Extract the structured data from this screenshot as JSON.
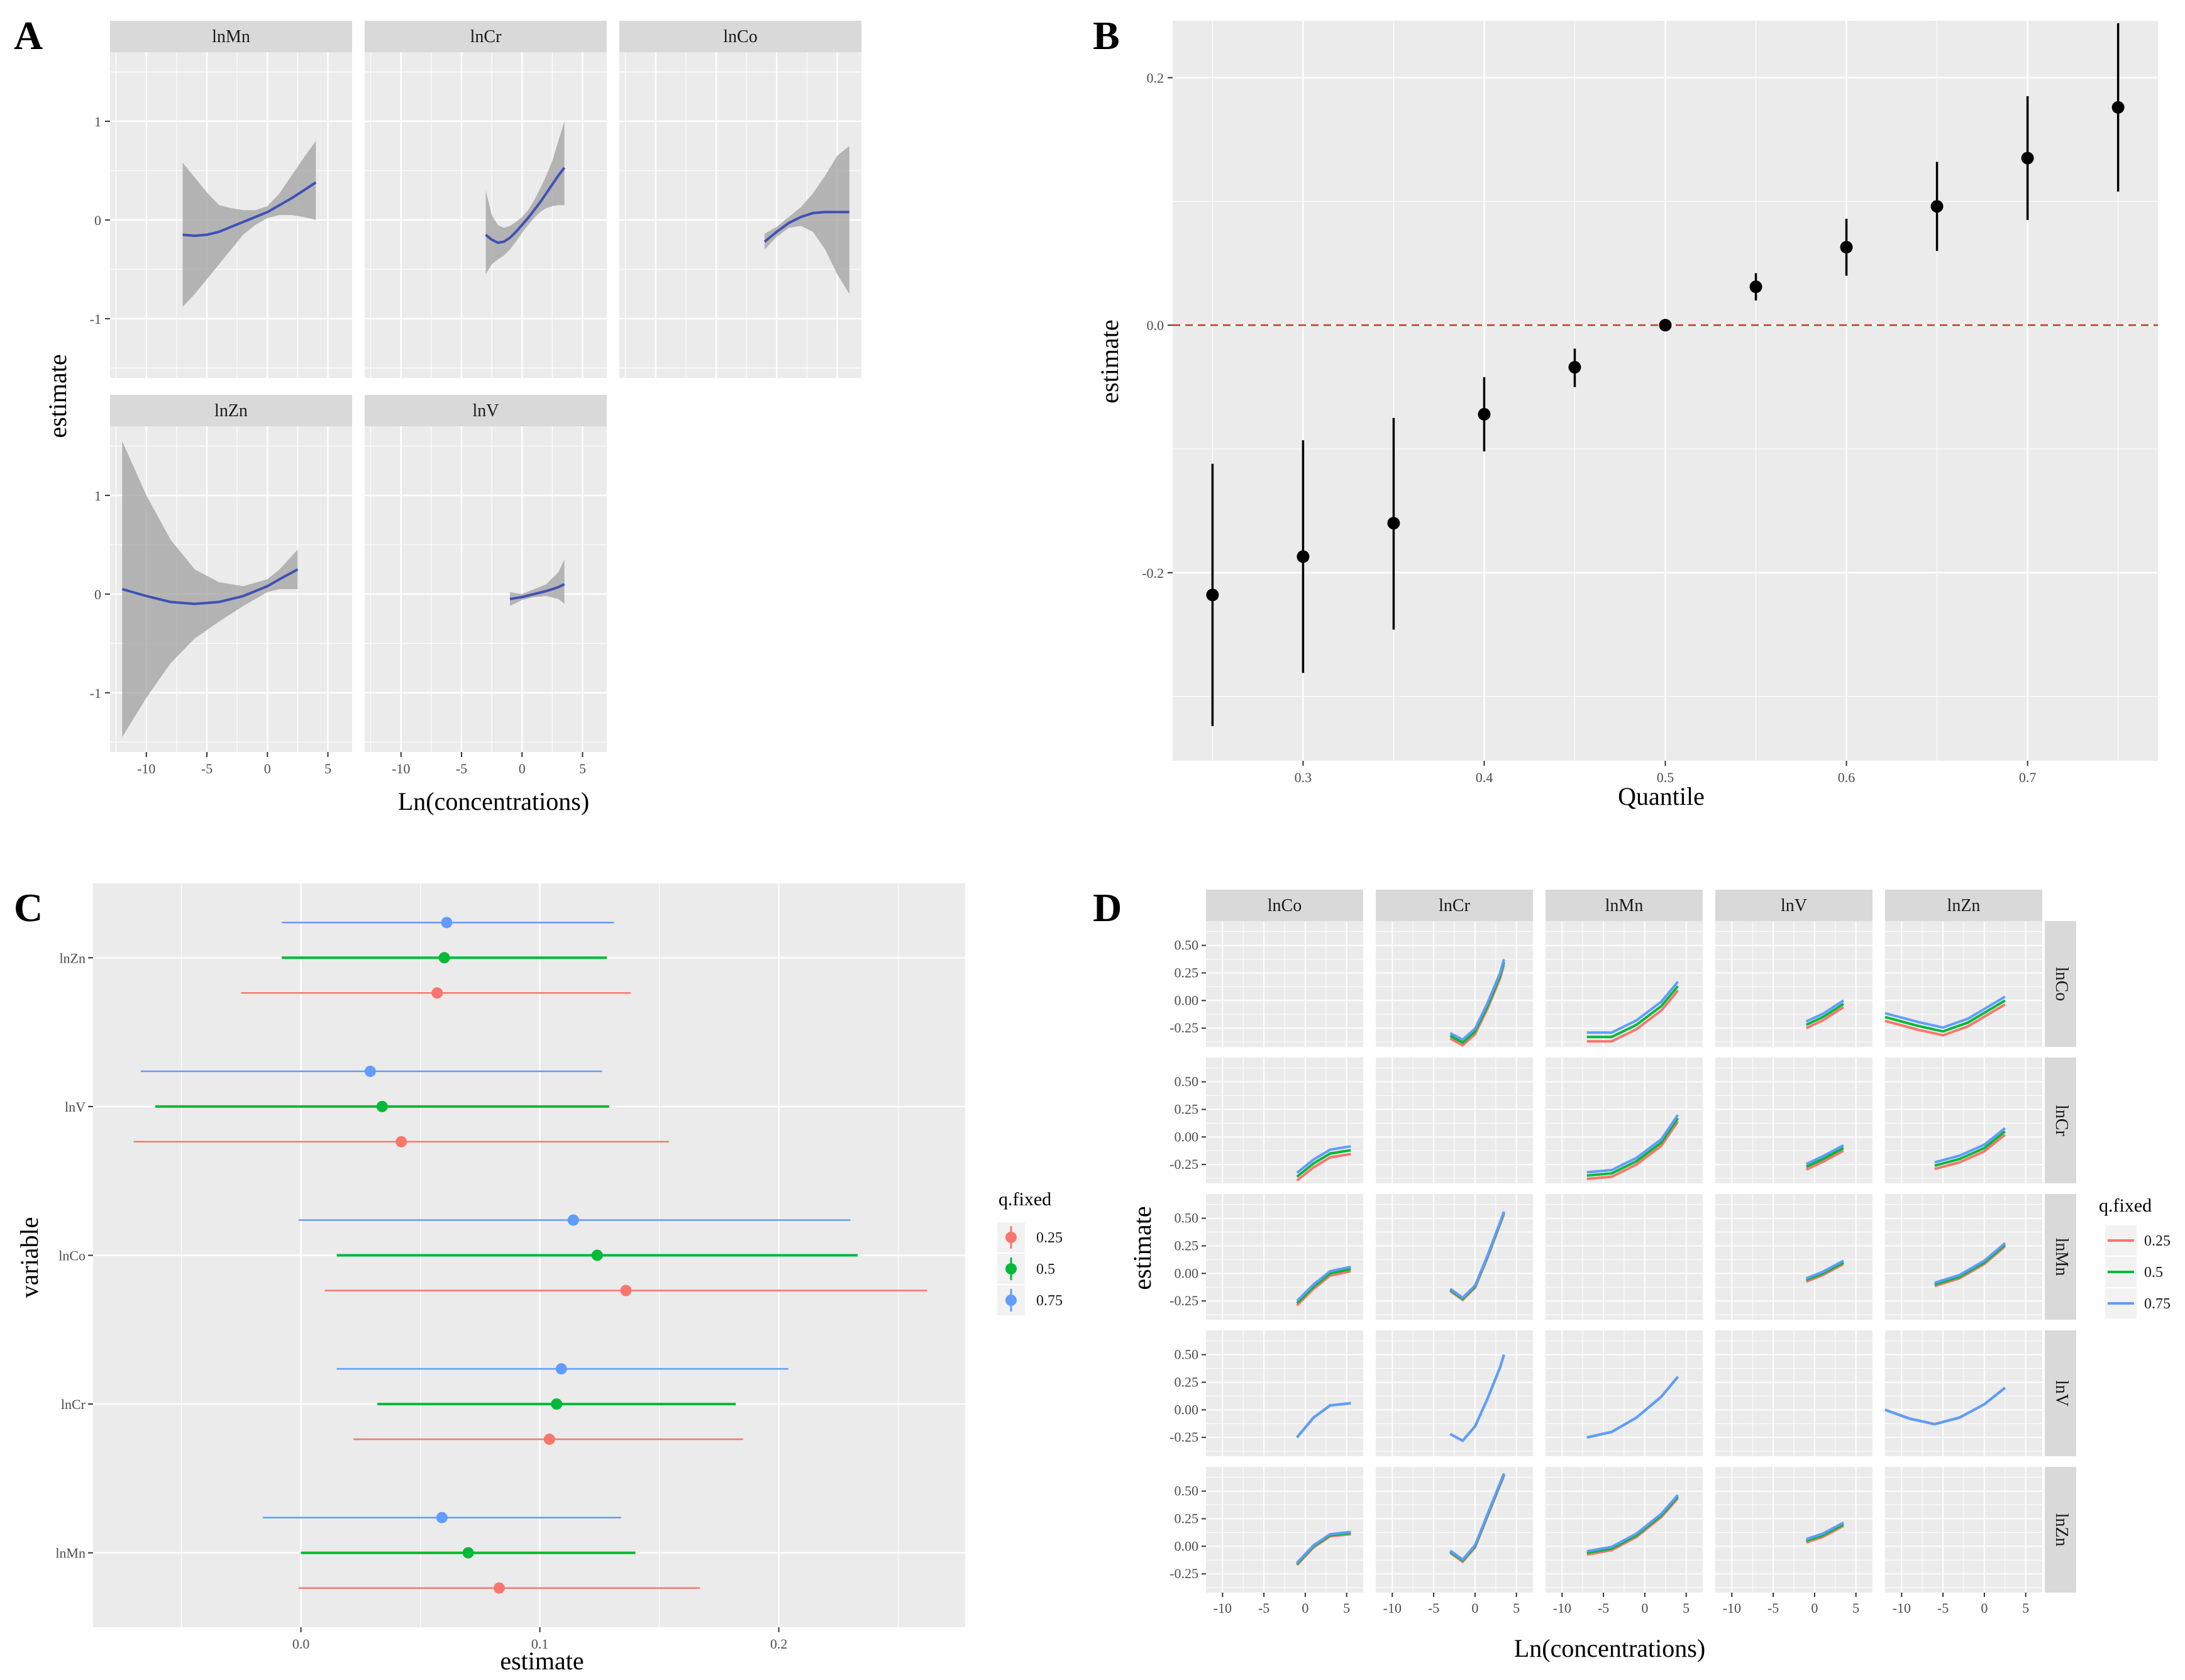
{
  "panel_labels": [
    "A",
    "B",
    "C",
    "D"
  ],
  "chart_data": [
    {
      "panel": "A",
      "type": "line",
      "description_type": "faceted exposure-response curves with confidence ribbons",
      "facets": [
        {
          "label": "lnMn",
          "x": [
            -7,
            -6,
            -5,
            -4,
            -3,
            -2,
            -1,
            0,
            1,
            2,
            3,
            4
          ],
          "y": [
            -0.15,
            -0.16,
            -0.15,
            -0.12,
            -0.07,
            -0.02,
            0.03,
            0.08,
            0.15,
            0.22,
            0.3,
            0.38
          ],
          "lower": [
            -0.88,
            -0.75,
            -0.6,
            -0.45,
            -0.3,
            -0.15,
            -0.05,
            0.02,
            0.05,
            0.05,
            0.03,
            0.0
          ],
          "upper": [
            0.58,
            0.43,
            0.28,
            0.15,
            0.12,
            0.1,
            0.1,
            0.14,
            0.27,
            0.45,
            0.63,
            0.8
          ]
        },
        {
          "label": "lnCr",
          "x": [
            -3,
            -2.5,
            -2,
            -1.5,
            -1,
            -0.5,
            0,
            0.5,
            1,
            1.5,
            2,
            2.5,
            3,
            3.5
          ],
          "y": [
            -0.15,
            -0.2,
            -0.23,
            -0.22,
            -0.18,
            -0.12,
            -0.05,
            0.02,
            0.1,
            0.18,
            0.27,
            0.36,
            0.45,
            0.53
          ],
          "lower": [
            -0.55,
            -0.45,
            -0.4,
            -0.36,
            -0.3,
            -0.22,
            -0.13,
            -0.05,
            0.02,
            0.08,
            0.12,
            0.14,
            0.15,
            0.15
          ],
          "upper": [
            0.3,
            0.05,
            -0.05,
            -0.08,
            -0.06,
            -0.02,
            0.03,
            0.1,
            0.2,
            0.32,
            0.45,
            0.6,
            0.8,
            1.0
          ]
        },
        {
          "label": "lnCo",
          "x": [
            -1,
            0,
            1,
            2,
            3,
            4,
            5,
            6
          ],
          "y": [
            -0.22,
            -0.12,
            -0.03,
            0.03,
            0.07,
            0.08,
            0.08,
            0.08
          ],
          "lower": [
            -0.3,
            -0.17,
            -0.08,
            -0.06,
            -0.12,
            -0.3,
            -0.55,
            -0.75
          ],
          "upper": [
            -0.14,
            -0.07,
            0.03,
            0.13,
            0.27,
            0.45,
            0.65,
            0.75
          ]
        },
        {
          "label": "lnZn",
          "x": [
            -12,
            -10,
            -8,
            -6,
            -4,
            -2,
            0,
            1,
            2.5
          ],
          "y": [
            0.05,
            -0.02,
            -0.08,
            -0.1,
            -0.08,
            -0.02,
            0.08,
            0.15,
            0.25
          ],
          "lower": [
            -1.45,
            -1.05,
            -0.7,
            -0.45,
            -0.28,
            -0.12,
            0.02,
            0.05,
            0.05
          ],
          "upper": [
            1.55,
            1.0,
            0.55,
            0.25,
            0.12,
            0.08,
            0.15,
            0.25,
            0.45
          ]
        },
        {
          "label": "lnV",
          "x": [
            -1,
            0,
            1,
            2,
            3,
            3.5
          ],
          "y": [
            -0.05,
            -0.03,
            0.0,
            0.03,
            0.07,
            0.1
          ],
          "lower": [
            -0.12,
            -0.06,
            -0.03,
            -0.02,
            -0.05,
            -0.1
          ],
          "upper": [
            0.02,
            0.0,
            0.05,
            0.1,
            0.22,
            0.35
          ]
        }
      ],
      "xlabel": "Ln(concentrations)",
      "ylabel": "estimate",
      "xticks": [
        -10,
        -5,
        0,
        5
      ],
      "yticks": [
        -1,
        0,
        1
      ],
      "xlim": [
        -13,
        7
      ],
      "ylim": [
        -1.6,
        1.7
      ],
      "line_color": "#3F51B5",
      "ribbon_color": "#A0A0A0"
    },
    {
      "panel": "B",
      "type": "scatter",
      "description_type": "point estimates with error bars by quantile",
      "x": [
        0.25,
        0.3,
        0.35,
        0.4,
        0.45,
        0.5,
        0.55,
        0.6,
        0.65,
        0.7,
        0.75
      ],
      "y": [
        -0.218,
        -0.187,
        -0.16,
        -0.072,
        -0.034,
        0.0,
        0.031,
        0.063,
        0.096,
        0.135,
        0.176
      ],
      "lower": [
        -0.324,
        -0.281,
        -0.246,
        -0.102,
        -0.05,
        0.0,
        0.02,
        0.04,
        0.06,
        0.085,
        0.108
      ],
      "upper": [
        -0.112,
        -0.093,
        -0.075,
        -0.042,
        -0.019,
        0.0,
        0.042,
        0.086,
        0.132,
        0.185,
        0.244
      ],
      "xlabel": "Quantile",
      "ylabel": "estimate",
      "xticks": [
        0.3,
        0.4,
        0.5,
        0.6,
        0.7
      ],
      "xtick_labels": [
        "0.3",
        "0.4",
        "0.5",
        "0.6",
        "0.7"
      ],
      "yticks": [
        -0.2,
        0.0,
        0.2
      ],
      "ytick_labels": [
        "-0.2",
        "0.0",
        "0.2"
      ],
      "xlim": [
        0.228,
        0.772
      ],
      "ylim": [
        -0.352,
        0.246
      ],
      "reference_line": {
        "y": 0,
        "color": "#C0392B",
        "style": "dashed"
      }
    },
    {
      "panel": "C",
      "type": "scatter",
      "description_type": "dot-and-whisker estimates by variable and fixed quantile",
      "categories": [
        "lnZn",
        "lnV",
        "lnCo",
        "lnCr",
        "lnMn"
      ],
      "series": [
        {
          "name": "0.25",
          "color": "#F8766D",
          "values": [
            0.057,
            0.042,
            0.136,
            0.104,
            0.083
          ],
          "lower": [
            -0.025,
            -0.07,
            0.01,
            0.022,
            -0.001
          ],
          "upper": [
            0.138,
            0.154,
            0.262,
            0.185,
            0.167
          ]
        },
        {
          "name": "0.5",
          "color": "#00BA38",
          "values": [
            0.06,
            0.034,
            0.124,
            0.107,
            0.07
          ],
          "lower": [
            -0.008,
            -0.061,
            0.015,
            0.032,
            0.0
          ],
          "upper": [
            0.128,
            0.129,
            0.233,
            0.182,
            0.14
          ]
        },
        {
          "name": "0.75",
          "color": "#619CFF",
          "values": [
            0.061,
            0.029,
            0.114,
            0.109,
            0.059
          ],
          "lower": [
            -0.008,
            -0.067,
            -0.001,
            0.015,
            -0.016
          ],
          "upper": [
            0.131,
            0.126,
            0.23,
            0.204,
            0.134
          ]
        }
      ],
      "xlabel": "estimate",
      "ylabel": "variable",
      "xticks": [
        0.0,
        0.1,
        0.2
      ],
      "xtick_labels": [
        "0.0",
        "0.1",
        "0.2"
      ],
      "xlim": [
        -0.087,
        0.278
      ],
      "legend_title": "q.fixed",
      "legend_labels": [
        "0.25",
        "0.5",
        "0.75"
      ],
      "legend_position": "right"
    },
    {
      "panel": "D",
      "type": "line",
      "description_type": "bivariate interaction grid of exposure-response curves",
      "col_labels": [
        "lnCo",
        "lnCr",
        "lnMn",
        "lnV",
        "lnZn"
      ],
      "row_labels": [
        "lnCo",
        "lnCr",
        "lnMn",
        "lnV",
        "lnZn"
      ],
      "xlabel": "Ln(concentrations)",
      "ylabel": "estimate",
      "xticks": [
        -10,
        -5,
        0,
        5
      ],
      "xtick_labels": [
        "-10",
        "-5",
        "0",
        "5"
      ],
      "yticks": [
        0.5,
        0.25,
        0.0,
        -0.25
      ],
      "ytick_labels": [
        "0.50",
        "0.25",
        "0.00",
        "-0.25"
      ],
      "xlim": [
        -12,
        7
      ],
      "ylim": [
        -0.42,
        0.72
      ],
      "legend_title": "q.fixed",
      "legend_labels": [
        "0.25",
        "0.5",
        "0.75"
      ],
      "series_colors": [
        "#F8766D",
        "#00BA38",
        "#619CFF"
      ],
      "legend_position": "right",
      "cells": [
        {
          "row": 0,
          "col": 1,
          "x": [
            -3,
            -1.5,
            0,
            1.5,
            3,
            3.5
          ],
          "y": [
            -0.32,
            -0.38,
            -0.28,
            -0.05,
            0.22,
            0.35
          ],
          "shift": 0.05
        },
        {
          "row": 0,
          "col": 2,
          "x": [
            -7,
            -4,
            -1,
            2,
            4
          ],
          "y": [
            -0.33,
            -0.33,
            -0.22,
            -0.05,
            0.13
          ],
          "shift": 0.08
        },
        {
          "row": 0,
          "col": 3,
          "x": [
            -1,
            1,
            3.5
          ],
          "y": [
            -0.22,
            -0.15,
            -0.03
          ],
          "shift": 0.06
        },
        {
          "row": 0,
          "col": 4,
          "x": [
            -12,
            -8,
            -5,
            -2,
            2.5
          ],
          "y": [
            -0.15,
            -0.23,
            -0.28,
            -0.2,
            0.0
          ],
          "shift": 0.07
        },
        {
          "row": 1,
          "col": 0,
          "x": [
            -1,
            1,
            3,
            5.5
          ],
          "y": [
            -0.36,
            -0.24,
            -0.15,
            -0.12
          ],
          "shift": 0.07
        },
        {
          "row": 1,
          "col": 2,
          "x": [
            -7,
            -4,
            -1,
            2,
            4
          ],
          "y": [
            -0.35,
            -0.33,
            -0.22,
            -0.05,
            0.17
          ],
          "shift": 0.06
        },
        {
          "row": 1,
          "col": 3,
          "x": [
            -1,
            1,
            3.5
          ],
          "y": [
            -0.27,
            -0.2,
            -0.1
          ],
          "shift": 0.05
        },
        {
          "row": 1,
          "col": 4,
          "x": [
            -6,
            -3,
            0,
            2.5
          ],
          "y": [
            -0.26,
            -0.2,
            -0.1,
            0.05
          ],
          "shift": 0.06
        },
        {
          "row": 2,
          "col": 0,
          "x": [
            -1,
            1,
            3,
            5.5
          ],
          "y": [
            -0.27,
            -0.12,
            0.0,
            0.04
          ],
          "shift": 0.04
        },
        {
          "row": 2,
          "col": 1,
          "x": [
            -3,
            -1.5,
            0,
            1.5,
            3,
            3.5
          ],
          "y": [
            -0.15,
            -0.23,
            -0.12,
            0.15,
            0.45,
            0.55
          ],
          "shift": 0.02
        },
        {
          "row": 2,
          "col": 3,
          "x": [
            -1,
            1,
            3.5
          ],
          "y": [
            -0.06,
            0.0,
            0.1
          ],
          "shift": 0.03
        },
        {
          "row": 2,
          "col": 4,
          "x": [
            -6,
            -3,
            0,
            2.5
          ],
          "y": [
            -0.1,
            -0.03,
            0.1,
            0.26
          ],
          "shift": 0.03
        },
        {
          "row": 3,
          "col": 0,
          "x": [
            -1,
            1,
            3,
            5.5
          ],
          "y": [
            -0.25,
            -0.07,
            0.04,
            0.06
          ],
          "shift": 0.0
        },
        {
          "row": 3,
          "col": 1,
          "x": [
            -3,
            -1.5,
            0,
            1.5,
            3,
            3.5
          ],
          "y": [
            -0.22,
            -0.28,
            -0.15,
            0.1,
            0.38,
            0.5
          ],
          "shift": 0.0
        },
        {
          "row": 3,
          "col": 2,
          "x": [
            -7,
            -4,
            -1,
            2,
            4
          ],
          "y": [
            -0.25,
            -0.2,
            -0.07,
            0.12,
            0.3
          ],
          "shift": 0.0
        },
        {
          "row": 3,
          "col": 4,
          "x": [
            -12,
            -9,
            -6,
            -3,
            0,
            2.5
          ],
          "y": [
            0.0,
            -0.08,
            -0.13,
            -0.07,
            0.05,
            0.2
          ],
          "shift": 0.0
        },
        {
          "row": 4,
          "col": 0,
          "x": [
            -1,
            1,
            3,
            5.5
          ],
          "y": [
            -0.16,
            0.0,
            0.1,
            0.12
          ],
          "shift": 0.02
        },
        {
          "row": 4,
          "col": 1,
          "x": [
            -3,
            -1.5,
            0,
            1.5,
            3,
            3.5
          ],
          "y": [
            -0.05,
            -0.13,
            0.0,
            0.28,
            0.56,
            0.65
          ],
          "shift": 0.02
        },
        {
          "row": 4,
          "col": 2,
          "x": [
            -7,
            -4,
            -1,
            2,
            4
          ],
          "y": [
            -0.06,
            -0.02,
            0.1,
            0.28,
            0.45
          ],
          "shift": 0.03
        },
        {
          "row": 4,
          "col": 3,
          "x": [
            -1,
            1,
            3.5
          ],
          "y": [
            0.05,
            0.1,
            0.2
          ],
          "shift": 0.03
        }
      ]
    }
  ]
}
